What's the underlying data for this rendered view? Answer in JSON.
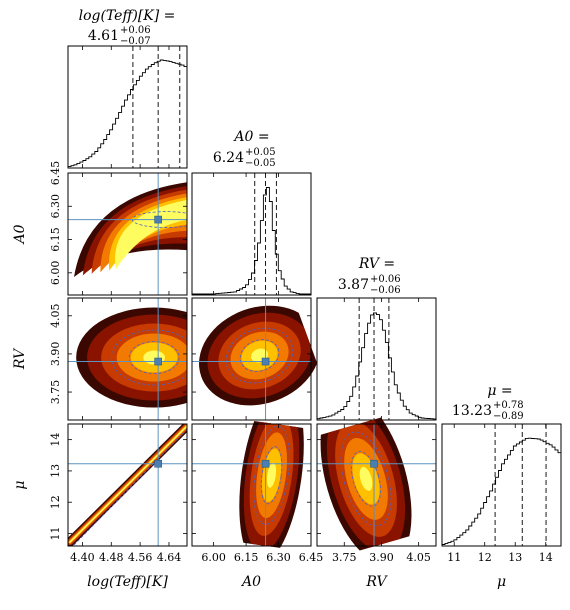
{
  "chart_data": {
    "type": "corner",
    "parameters": [
      {
        "key": "teff",
        "axis_label": "log(Teff)[K]",
        "title_label": "log(Teff)[K] =",
        "title_value": "4.61",
        "title_plus": "+0.06",
        "title_minus": "−0.07",
        "median": 4.61,
        "q16": 4.54,
        "q84": 4.67,
        "range": [
          4.36,
          4.69
        ],
        "ticks": [
          4.4,
          4.48,
          4.56,
          4.64
        ],
        "tick_labels": [
          "4.40",
          "4.48",
          "4.56",
          "4.64"
        ]
      },
      {
        "key": "a0",
        "axis_label": "A0",
        "title_label": "A0 =",
        "title_value": "6.24",
        "title_plus": "+0.05",
        "title_minus": "−0.05",
        "median": 6.24,
        "q16": 6.19,
        "q84": 6.29,
        "range": [
          5.9,
          6.45
        ],
        "ticks": [
          6.0,
          6.15,
          6.3,
          6.45
        ],
        "tick_labels": [
          "6.00",
          "6.15",
          "6.30",
          "6.45"
        ]
      },
      {
        "key": "rv",
        "axis_label": "RV",
        "title_label": "RV =",
        "title_value": "3.87",
        "title_plus": "+0.06",
        "title_minus": "−0.06",
        "median": 3.87,
        "q16": 3.81,
        "q84": 3.93,
        "range": [
          3.64,
          4.12
        ],
        "ticks": [
          3.75,
          3.9,
          4.05
        ],
        "tick_labels": [
          "3.75",
          "3.90",
          "4.05"
        ]
      },
      {
        "key": "mu",
        "axis_label": "μ",
        "title_label": "μ =",
        "title_value": "13.23",
        "title_plus": "+0.78",
        "title_minus": "−0.89",
        "median": 13.23,
        "q16": 12.34,
        "q84": 14.01,
        "range": [
          10.6,
          14.5
        ],
        "ticks": [
          11,
          12,
          13,
          14
        ],
        "tick_labels": [
          "11",
          "12",
          "13",
          "14"
        ]
      }
    ],
    "marginals": [
      {
        "param": "teff",
        "x": [
          4.36,
          4.38,
          4.4,
          4.42,
          4.44,
          4.46,
          4.48,
          4.5,
          4.52,
          4.54,
          4.56,
          4.58,
          4.6,
          4.62,
          4.64,
          4.66,
          4.68,
          4.69
        ],
        "density": [
          0.0,
          0.02,
          0.05,
          0.09,
          0.15,
          0.24,
          0.35,
          0.48,
          0.62,
          0.74,
          0.84,
          0.92,
          0.97,
          1.0,
          0.99,
          0.97,
          0.95,
          0.93
        ]
      },
      {
        "param": "a0",
        "x": [
          6.0,
          6.1,
          6.15,
          6.18,
          6.2,
          6.22,
          6.23,
          6.24,
          6.25,
          6.26,
          6.27,
          6.28,
          6.3,
          6.33,
          6.36,
          6.4,
          6.45
        ],
        "density": [
          0.0,
          0.02,
          0.07,
          0.18,
          0.35,
          0.62,
          0.83,
          0.97,
          1.0,
          0.93,
          0.78,
          0.55,
          0.25,
          0.08,
          0.02,
          0.0,
          0.0
        ]
      },
      {
        "param": "rv",
        "x": [
          3.64,
          3.7,
          3.75,
          3.78,
          3.8,
          3.82,
          3.84,
          3.86,
          3.88,
          3.9,
          3.92,
          3.94,
          3.96,
          3.99,
          4.02,
          4.06,
          4.12
        ],
        "density": [
          0.0,
          0.03,
          0.1,
          0.22,
          0.38,
          0.6,
          0.82,
          0.97,
          1.0,
          0.92,
          0.74,
          0.5,
          0.3,
          0.13,
          0.05,
          0.01,
          0.0
        ]
      },
      {
        "param": "mu",
        "x": [
          10.6,
          11.0,
          11.4,
          11.8,
          12.2,
          12.6,
          13.0,
          13.4,
          13.8,
          14.2,
          14.5
        ],
        "density": [
          0.0,
          0.04,
          0.13,
          0.28,
          0.5,
          0.76,
          0.93,
          1.0,
          0.99,
          0.93,
          0.85
        ]
      }
    ],
    "joint_panels": [
      {
        "x": "teff",
        "y": "a0",
        "shape": "curved-upper-band"
      },
      {
        "x": "teff",
        "y": "rv",
        "shape": "broad-blob"
      },
      {
        "x": "a0",
        "y": "rv",
        "shape": "compact-blob"
      },
      {
        "x": "teff",
        "y": "mu",
        "shape": "narrow-linear"
      },
      {
        "x": "a0",
        "y": "mu",
        "shape": "vertical-band"
      },
      {
        "x": "rv",
        "y": "mu",
        "shape": "tilted-band"
      }
    ],
    "colors": {
      "median_line": "#5b93c1",
      "marker": "#4a80b3",
      "contour": "#4a62c9",
      "histogram": "#000000",
      "colormap": [
        "#3a0800",
        "#8a1300",
        "#c73a00",
        "#f27a00",
        "#ffc000",
        "#fffc60"
      ]
    }
  }
}
